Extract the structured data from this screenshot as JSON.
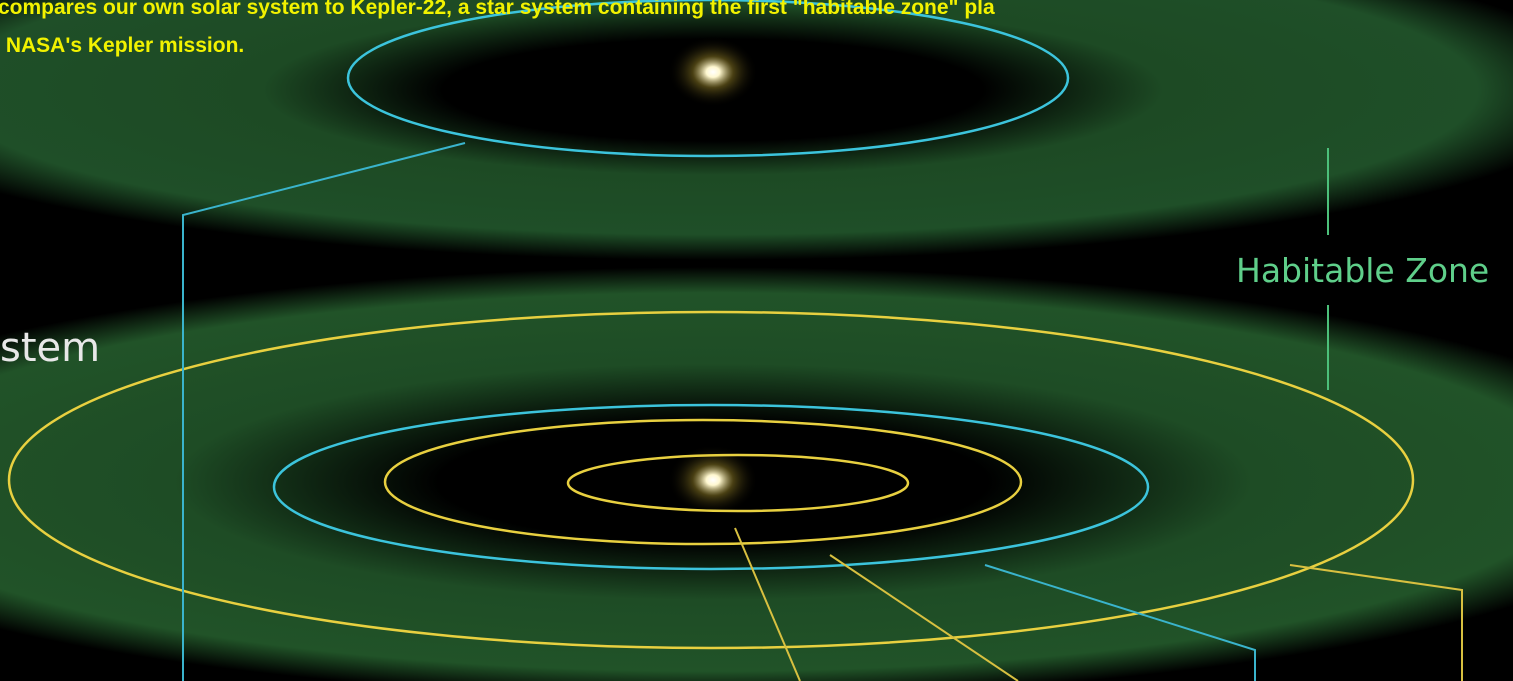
{
  "caption": {
    "lines": [
      "compares our own solar system to Kepler-22, a star system containing the first \"habitable zone\" pla",
      " NASA's Kepler mission."
    ]
  },
  "diagram": {
    "left_label": "stem",
    "zone_label": "Habitable Zone"
  }
}
